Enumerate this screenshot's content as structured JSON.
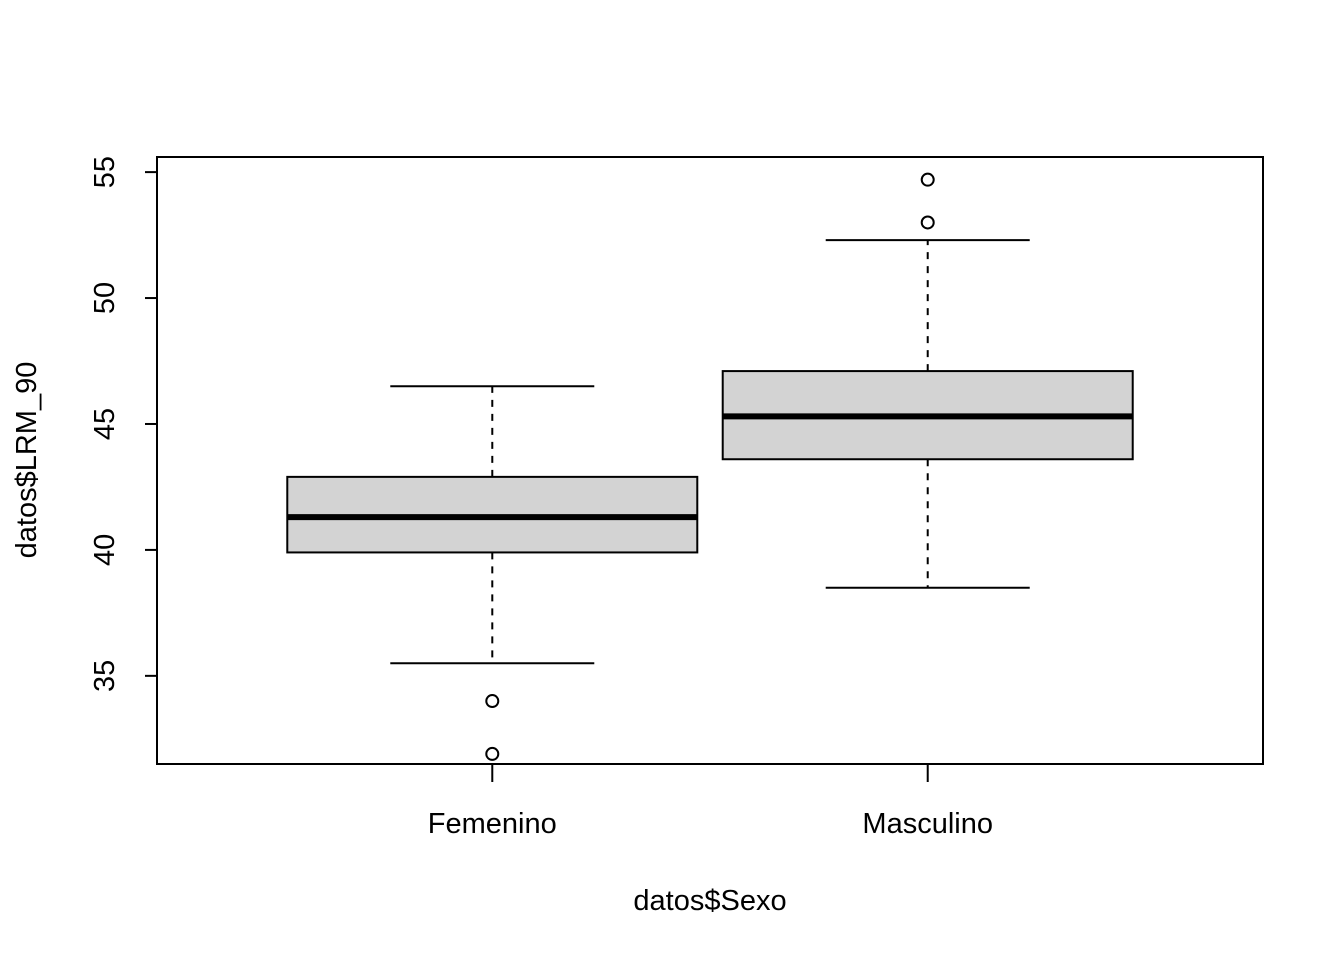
{
  "chart_data": {
    "type": "boxplot",
    "title": "",
    "xlabel": "datos$Sexo",
    "ylabel": "datos$LRM_90",
    "ylim": [
      31.5,
      55.6
    ],
    "yticks": [
      35,
      40,
      45,
      50,
      55
    ],
    "grid": false,
    "box_fill": "#d3d3d3",
    "categories": [
      "Femenino",
      "Masculino"
    ],
    "boxes": [
      {
        "category": "Femenino",
        "whisker_low": 35.5,
        "q1": 39.9,
        "median": 41.3,
        "q3": 42.9,
        "whisker_high": 46.5,
        "outliers": [
          34.0,
          31.9
        ]
      },
      {
        "category": "Masculino",
        "whisker_low": 38.5,
        "q1": 43.6,
        "median": 45.3,
        "q3": 47.1,
        "whisker_high": 52.3,
        "outliers": [
          53.0,
          54.7
        ]
      }
    ]
  }
}
